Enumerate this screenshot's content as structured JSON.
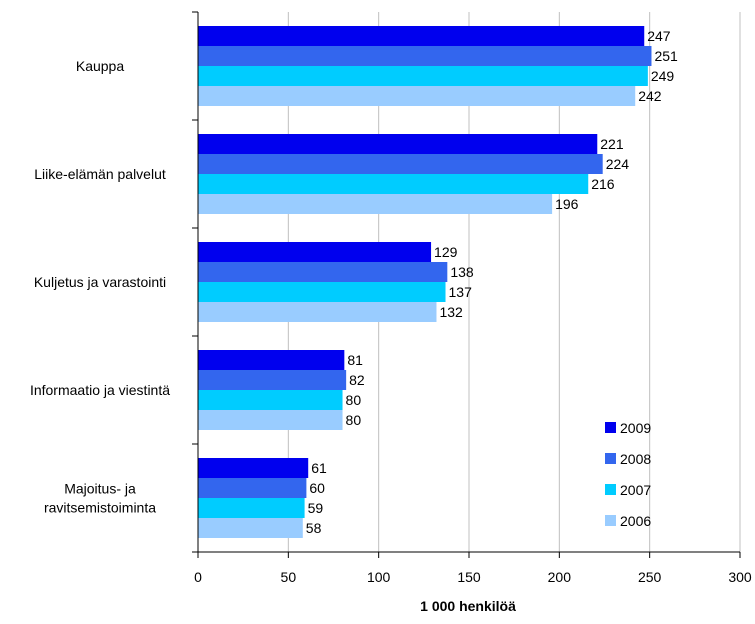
{
  "chart_data": {
    "type": "bar",
    "orientation": "horizontal",
    "categories": [
      "Kauppa",
      "Liike-elämän palvelut",
      "Kuljetus ja varastointi",
      "Informaatio ja viestintä",
      "Majoitus- ja ravitsemistoiminta"
    ],
    "category_lines": [
      [
        "Kauppa"
      ],
      [
        "Liike-elämän palvelut"
      ],
      [
        "Kuljetus ja varastointi"
      ],
      [
        "Informaatio ja viestintä"
      ],
      [
        "Majoitus- ja",
        "ravitsemistoiminta"
      ]
    ],
    "series": [
      {
        "name": "2009",
        "color": "#0000ee",
        "values": [
          247,
          221,
          129,
          81,
          61
        ]
      },
      {
        "name": "2008",
        "color": "#3366ee",
        "values": [
          251,
          224,
          138,
          82,
          60
        ]
      },
      {
        "name": "2007",
        "color": "#00ccff",
        "values": [
          249,
          216,
          137,
          80,
          59
        ]
      },
      {
        "name": "2006",
        "color": "#99ccff",
        "values": [
          242,
          196,
          132,
          80,
          58
        ]
      }
    ],
    "xlabel": "1 000 henkilöä",
    "xlim": [
      0,
      300
    ],
    "xticks": [
      0,
      50,
      100,
      150,
      200,
      250,
      300
    ],
    "grid": true,
    "legend_position": "bottom-right"
  }
}
